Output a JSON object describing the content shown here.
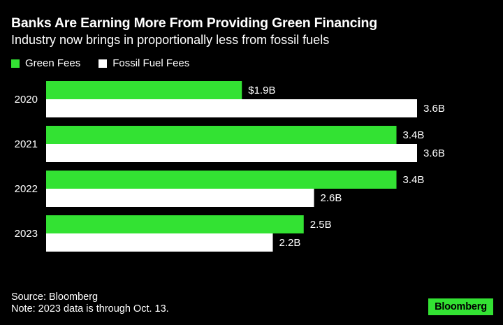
{
  "header": {
    "title": "Banks Are Earning More From Providing Green Financing",
    "subtitle": "Industry now brings in proportionally less from fossil fuels"
  },
  "footer": {
    "source": "Source: Bloomberg",
    "note": "Note: 2023 data is through Oct. 13."
  },
  "brand": {
    "logo_text": "Bloomberg",
    "color": "#33e233"
  },
  "chart_data": {
    "type": "bar",
    "orientation": "horizontal",
    "title": "Banks Are Earning More From Providing Green Financing",
    "subtitle": "Industry now brings in proportionally less from fossil fuels",
    "categories": [
      "2020",
      "2021",
      "2022",
      "2023"
    ],
    "series": [
      {
        "name": "Green Fees",
        "color": "#33e233",
        "values": [
          1.9,
          3.4,
          3.4,
          2.5
        ],
        "labels": [
          "$1.9B",
          "3.4B",
          "3.4B",
          "2.5B"
        ]
      },
      {
        "name": "Fossil Fuel Fees",
        "color": "#ffffff",
        "values": [
          3.6,
          3.6,
          2.6,
          2.2
        ],
        "labels": [
          "3.6B",
          "3.6B",
          "2.6B",
          "2.2B"
        ]
      }
    ],
    "xlim": [
      0,
      3.6
    ],
    "legend": "top-left",
    "grid": false
  }
}
